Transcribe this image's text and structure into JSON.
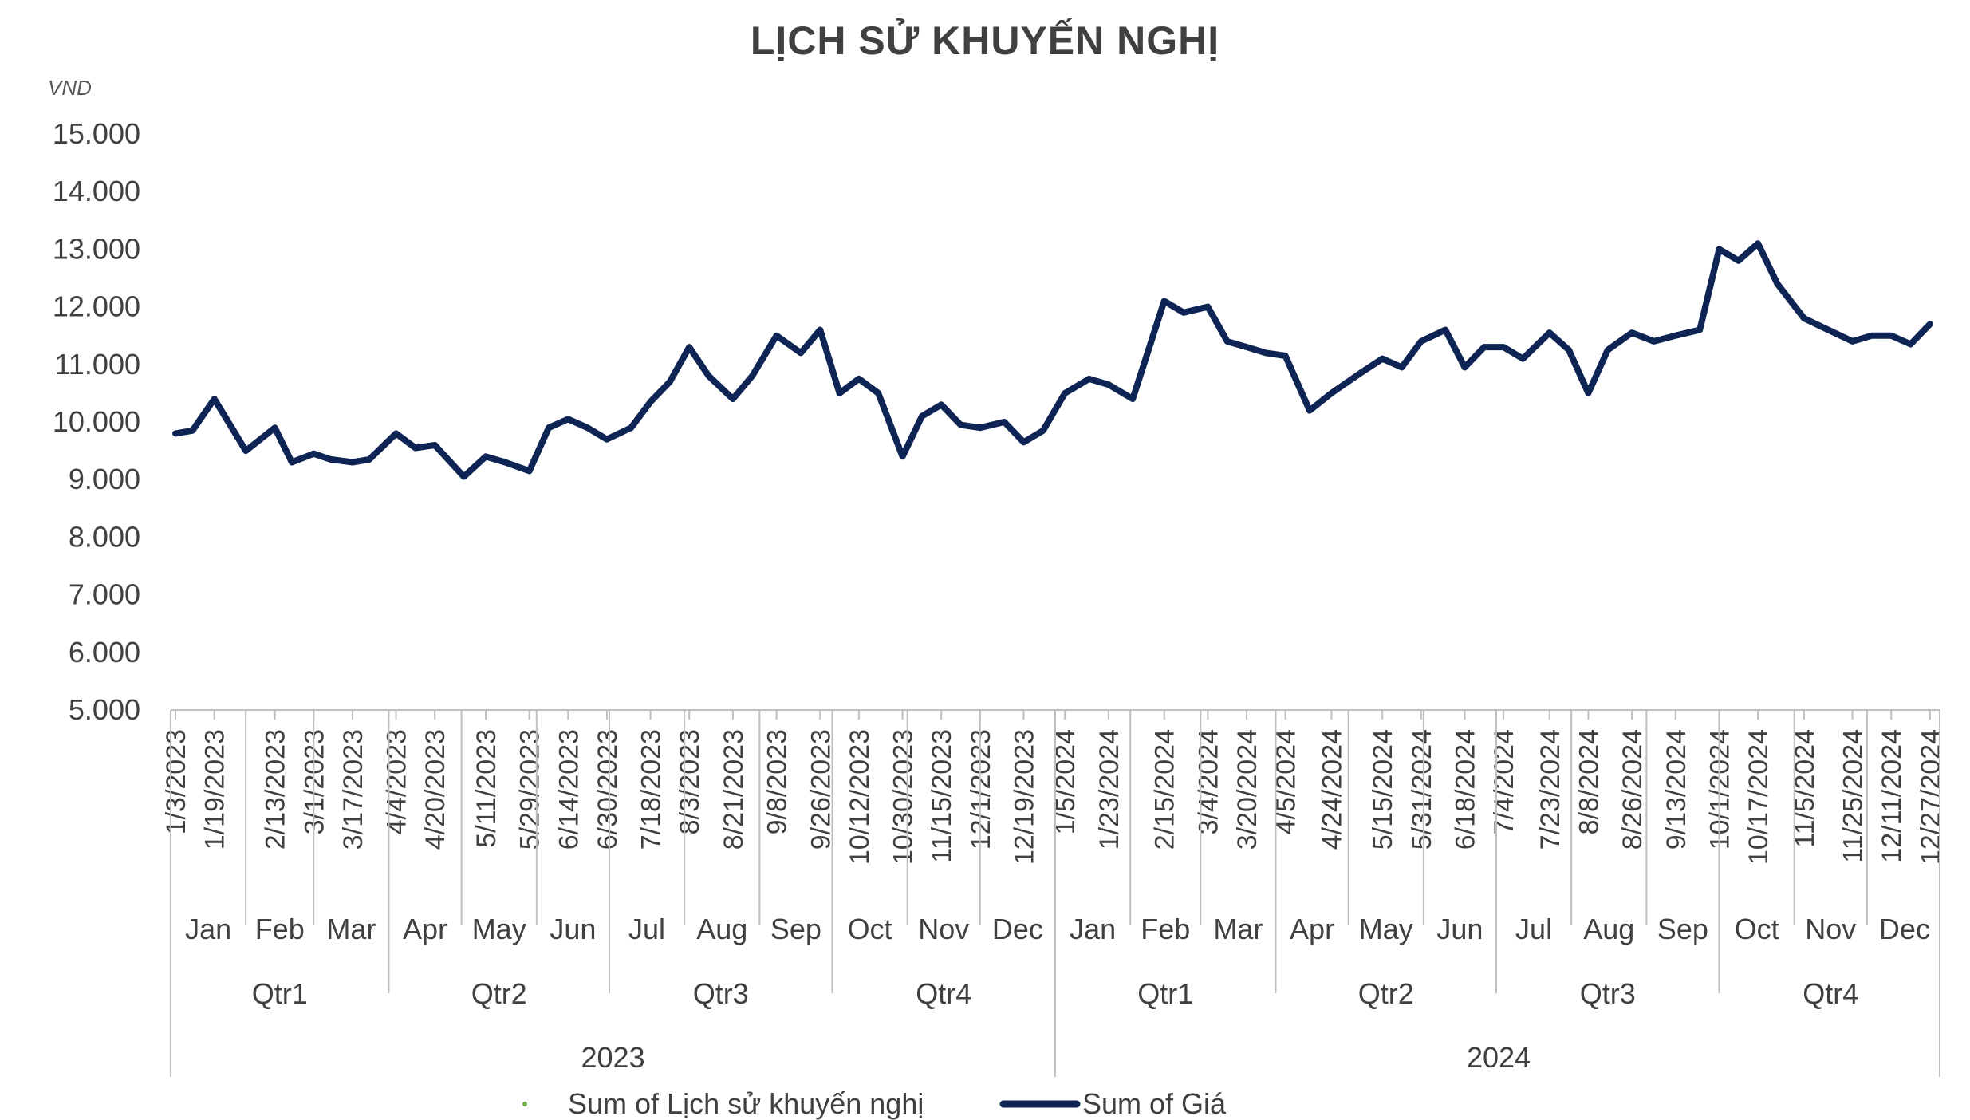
{
  "chart_data": {
    "type": "line",
    "title": "LỊCH SỬ KHUYẾN NGHỊ",
    "ylabel": "VND",
    "ylim": [
      5000,
      15000
    ],
    "yticks": [
      "15.000",
      "14.000",
      "13.000",
      "12.000",
      "11.000",
      "10.000",
      "9.000",
      "8.000",
      "7.000",
      "6.000",
      "5.000"
    ],
    "ytick_values": [
      15000,
      14000,
      13000,
      12000,
      11000,
      10000,
      9000,
      8000,
      7000,
      6000,
      5000
    ],
    "date_labels": [
      "1/3/2023",
      "1/19/2023",
      "2/13/2023",
      "3/1/2023",
      "3/17/2023",
      "4/4/2023",
      "4/20/2023",
      "5/11/2023",
      "5/29/2023",
      "6/14/2023",
      "6/30/2023",
      "7/18/2023",
      "8/3/2023",
      "8/21/2023",
      "9/8/2023",
      "9/26/2023",
      "10/12/2023",
      "10/30/2023",
      "11/15/2023",
      "12/1/2023",
      "12/19/2023",
      "1/5/2024",
      "1/23/2024",
      "2/15/2024",
      "3/4/2024",
      "3/20/2024",
      "4/5/2024",
      "4/24/2024",
      "5/15/2024",
      "5/31/2024",
      "6/18/2024",
      "7/4/2024",
      "7/23/2024",
      "8/8/2024",
      "8/26/2024",
      "9/13/2024",
      "10/1/2024",
      "10/17/2024",
      "11/5/2024",
      "11/25/2024",
      "12/11/2024",
      "12/27/2024"
    ],
    "months": [
      "Jan",
      "Feb",
      "Mar",
      "Apr",
      "May",
      "Jun",
      "Jul",
      "Aug",
      "Sep",
      "Oct",
      "Nov",
      "Dec",
      "Jan",
      "Feb",
      "Mar",
      "Apr",
      "May",
      "Jun",
      "Jul",
      "Aug",
      "Sep",
      "Oct",
      "Nov",
      "Dec"
    ],
    "quarters": [
      "Qtr1",
      "Qtr2",
      "Qtr3",
      "Qtr4",
      "Qtr1",
      "Qtr2",
      "Qtr3",
      "Qtr4"
    ],
    "years": [
      "2023",
      "2024"
    ],
    "legend": [
      "Sum of Lịch sử khuyến nghị",
      "Sum of Giá"
    ],
    "legend_position": "bottom",
    "colors": {
      "price_line": "#0d2454",
      "recommendation_marker": "#70ad47",
      "axis": "#bfbfbf",
      "text": "#404040"
    },
    "series": [
      {
        "name": "Sum of Giá",
        "x": [
          "1/3/2023",
          "1/10/2023",
          "1/19/2023",
          "2/1/2023",
          "2/13/2023",
          "2/20/2023",
          "3/1/2023",
          "3/8/2023",
          "3/17/2023",
          "3/24/2023",
          "4/4/2023",
          "4/12/2023",
          "4/20/2023",
          "5/2/2023",
          "5/11/2023",
          "5/19/2023",
          "5/29/2023",
          "6/6/2023",
          "6/14/2023",
          "6/22/2023",
          "6/30/2023",
          "7/10/2023",
          "7/18/2023",
          "7/26/2023",
          "8/3/2023",
          "8/11/2023",
          "8/21/2023",
          "8/29/2023",
          "9/8/2023",
          "9/18/2023",
          "9/26/2023",
          "10/4/2023",
          "10/12/2023",
          "10/20/2023",
          "10/30/2023",
          "11/7/2023",
          "11/15/2023",
          "11/23/2023",
          "12/1/2023",
          "12/11/2023",
          "12/19/2023",
          "12/27/2023",
          "1/5/2024",
          "1/15/2024",
          "1/23/2024",
          "2/2/2024",
          "2/15/2024",
          "2/23/2024",
          "3/4/2024",
          "3/12/2024",
          "3/20/2024",
          "3/28/2024",
          "4/5/2024",
          "4/15/2024",
          "4/24/2024",
          "5/6/2024",
          "5/15/2024",
          "5/23/2024",
          "5/31/2024",
          "6/10/2024",
          "6/18/2024",
          "6/26/2024",
          "7/4/2024",
          "7/12/2024",
          "7/23/2024",
          "7/31/2024",
          "8/8/2024",
          "8/16/2024",
          "8/26/2024",
          "9/4/2024",
          "9/13/2024",
          "9/23/2024",
          "10/1/2024",
          "10/9/2024",
          "10/17/2024",
          "10/25/2024",
          "11/5/2024",
          "11/15/2024",
          "11/25/2024",
          "12/3/2024",
          "12/11/2024",
          "12/19/2024",
          "12/27/2024"
        ],
        "values": [
          9800,
          9850,
          10400,
          9500,
          9900,
          9300,
          9450,
          9350,
          9300,
          9350,
          9800,
          9550,
          9600,
          9050,
          9400,
          9300,
          9150,
          9900,
          10050,
          9900,
          9700,
          9900,
          10350,
          10700,
          11300,
          10800,
          10400,
          10800,
          11500,
          11200,
          11600,
          10500,
          10750,
          10500,
          9400,
          10100,
          10300,
          9950,
          9900,
          10000,
          9650,
          9850,
          10500,
          10750,
          10650,
          10400,
          12100,
          11900,
          12000,
          11400,
          11300,
          11200,
          11150,
          10200,
          10500,
          10850,
          11100,
          10950,
          11400,
          11600,
          10950,
          11300,
          11300,
          11100,
          11550,
          11250,
          10500,
          11250,
          11550,
          11400,
          11500,
          11600,
          13000,
          12800,
          13100,
          12400,
          11800,
          11600,
          11400,
          11500,
          11500,
          11350,
          11700
        ]
      },
      {
        "name": "Sum of Lịch sử khuyến nghị",
        "x": [],
        "values": []
      }
    ]
  }
}
